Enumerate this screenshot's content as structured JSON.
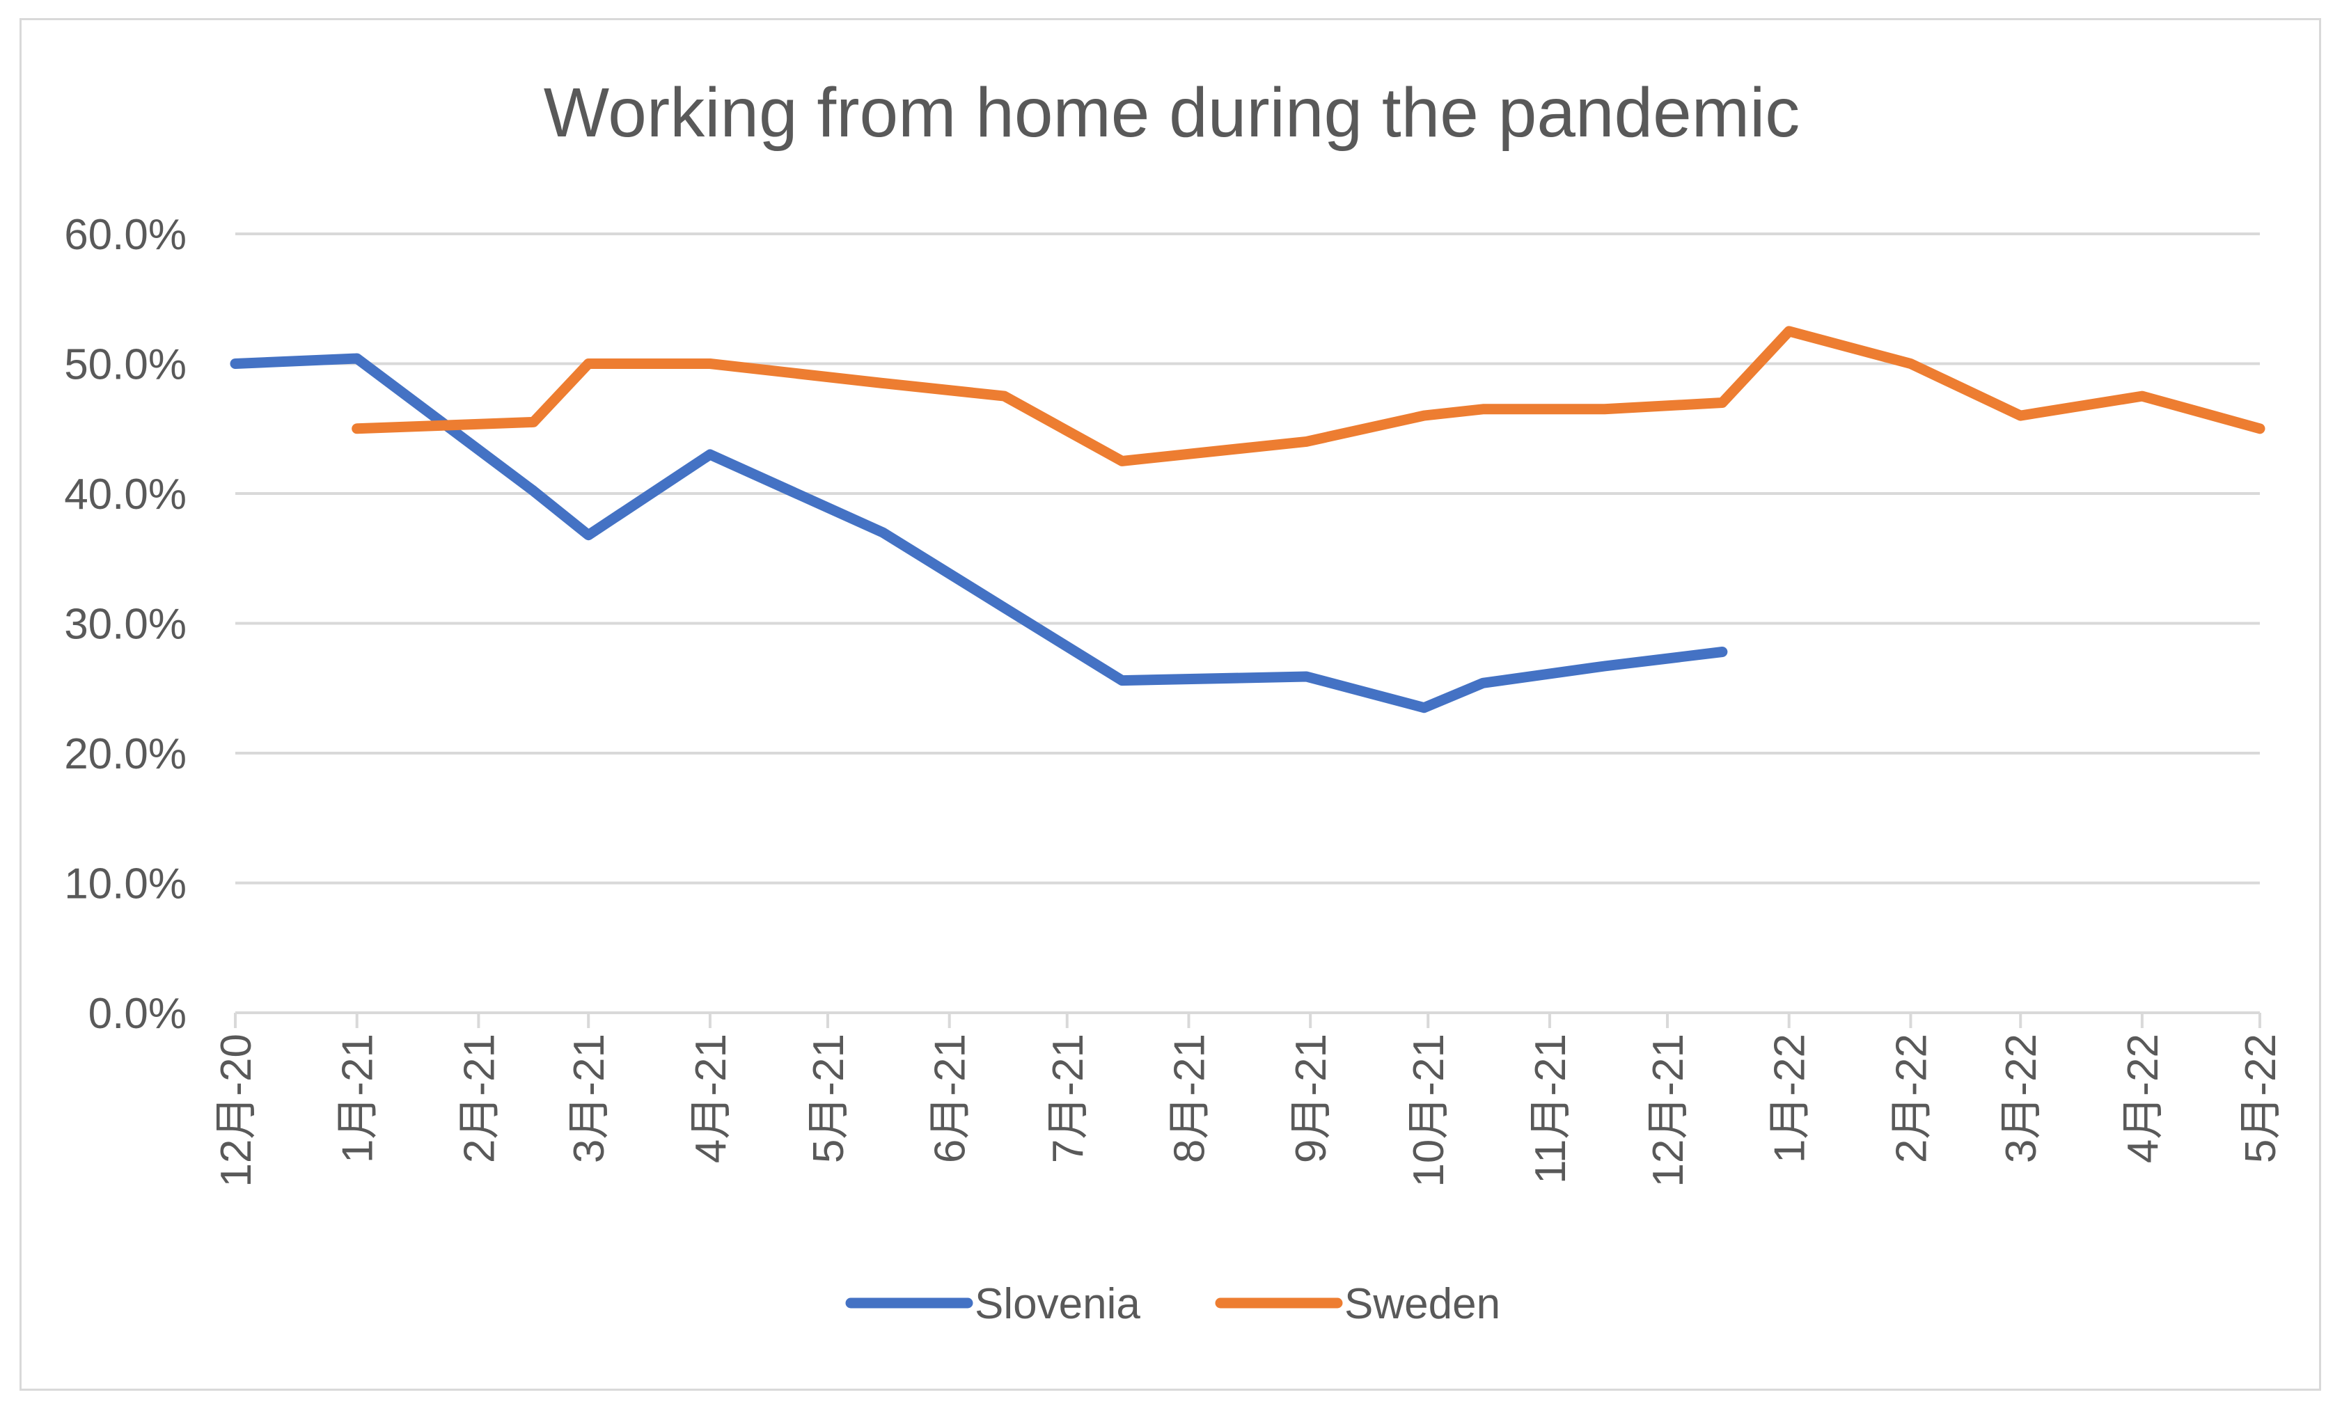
{
  "chart_data": {
    "type": "line",
    "title": "Working from home during the pandemic",
    "xlabel": "",
    "ylabel": "",
    "x_tick_labels": [
      "12月-20",
      "1月-21",
      "2月-21",
      "3月-21",
      "4月-21",
      "5月-21",
      "6月-21",
      "7月-21",
      "8月-21",
      "9月-21",
      "10月-21",
      "11月-21",
      "12月-21",
      "1月-22",
      "2月-22",
      "3月-22",
      "4月-22",
      "5月-22"
    ],
    "y_tick_labels": [
      "0.0%",
      "10.0%",
      "20.0%",
      "30.0%",
      "40.0%",
      "50.0%",
      "60.0%"
    ],
    "ylim": [
      0,
      0.6
    ],
    "grid": true,
    "legend_position": "bottom",
    "series": [
      {
        "name": "Slovenia",
        "color": "#4472c4",
        "points": [
          {
            "x": "2020-12-01",
            "y": 0.5
          },
          {
            "x": "2021-01-01",
            "y": 0.504
          },
          {
            "x": "2021-02-15",
            "y": 0.402
          },
          {
            "x": "2021-03-01",
            "y": 0.368
          },
          {
            "x": "2021-04-01",
            "y": 0.43
          },
          {
            "x": "2021-05-15",
            "y": 0.37
          },
          {
            "x": "2021-06-15",
            "y": 0.312
          },
          {
            "x": "2021-07-15",
            "y": 0.256
          },
          {
            "x": "2021-08-31",
            "y": 0.259
          },
          {
            "x": "2021-09-30",
            "y": 0.235
          },
          {
            "x": "2021-10-15",
            "y": 0.254
          },
          {
            "x": "2021-11-15",
            "y": 0.267
          },
          {
            "x": "2021-12-15",
            "y": 0.278
          }
        ]
      },
      {
        "name": "Sweden",
        "color": "#ed7d31",
        "points": [
          {
            "x": "2021-01-01",
            "y": 0.45
          },
          {
            "x": "2021-02-15",
            "y": 0.455
          },
          {
            "x": "2021-03-01",
            "y": 0.5
          },
          {
            "x": "2021-04-01",
            "y": 0.5
          },
          {
            "x": "2021-05-15",
            "y": 0.485
          },
          {
            "x": "2021-06-15",
            "y": 0.475
          },
          {
            "x": "2021-07-15",
            "y": 0.425
          },
          {
            "x": "2021-08-31",
            "y": 0.44
          },
          {
            "x": "2021-09-30",
            "y": 0.46
          },
          {
            "x": "2021-10-15",
            "y": 0.465
          },
          {
            "x": "2021-11-15",
            "y": 0.465
          },
          {
            "x": "2021-12-15",
            "y": 0.47
          },
          {
            "x": "2022-01-01",
            "y": 0.525
          },
          {
            "x": "2022-02-01",
            "y": 0.5
          },
          {
            "x": "2022-03-01",
            "y": 0.46
          },
          {
            "x": "2022-04-01",
            "y": 0.475
          },
          {
            "x": "2022-05-01",
            "y": 0.45
          }
        ]
      }
    ]
  }
}
